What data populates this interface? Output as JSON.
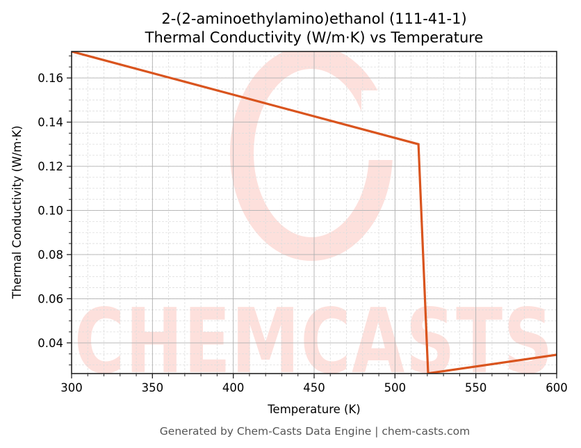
{
  "chart_data": {
    "type": "line",
    "title": "2-(2-aminoethylamino)ethanol (111-41-1)",
    "subtitle": "Thermal Conductivity (W/m·K) vs Temperature",
    "xlabel": "Temperature (K)",
    "ylabel": "Thermal Conductivity (W/m·K)",
    "xlim": [
      300,
      600
    ],
    "ylim": [
      0.0261,
      0.172
    ],
    "xticks": [
      300,
      350,
      400,
      450,
      500,
      550,
      600
    ],
    "xtick_labels": [
      "300",
      "350",
      "400",
      "450",
      "500",
      "550",
      "600"
    ],
    "yticks": [
      0.04,
      0.06,
      0.08,
      0.1,
      0.12,
      0.14,
      0.16
    ],
    "ytick_labels": [
      "0.04",
      "0.06",
      "0.08",
      "0.10",
      "0.12",
      "0.14",
      "0.16"
    ],
    "grid": true,
    "minor_grid": true,
    "legend": null,
    "series": [
      {
        "name": "Thermal Conductivity",
        "color": "#d9541e",
        "x": [
          300,
          514.5,
          520.5,
          600
        ],
        "y": [
          0.172,
          0.13,
          0.0262,
          0.0346
        ]
      }
    ]
  },
  "footer": "Generated by Chem-Casts Data Engine | chem-casts.com",
  "watermark": {
    "text": "CHEMCASTS",
    "color": "#fde0dc"
  },
  "colors": {
    "line": "#d9541e",
    "major_grid": "#b0b0b0",
    "minor_grid": "#dddddd",
    "axes": "#222222",
    "footer_text": "#555555"
  }
}
